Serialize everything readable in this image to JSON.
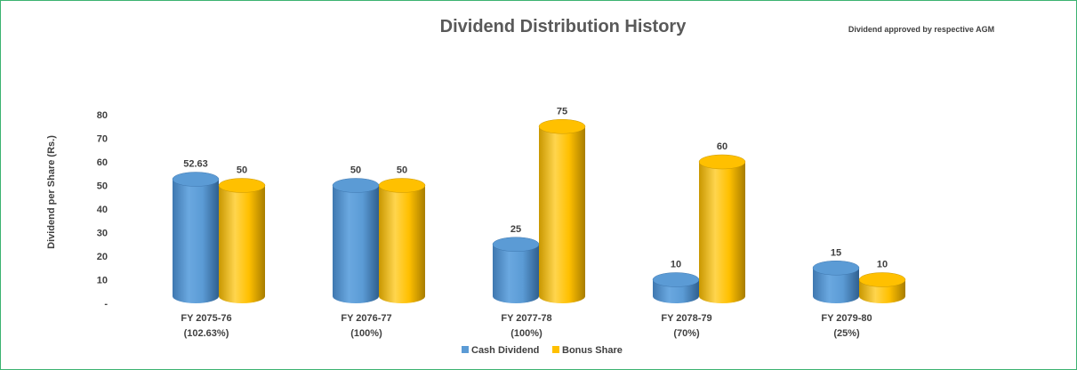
{
  "chart_data": {
    "type": "bar",
    "title": "Dividend Distribution History",
    "note": "Dividend approved by respective AGM",
    "ylabel": "Dividend per Share (Rs.)",
    "ylim": [
      0,
      80
    ],
    "yticks": [
      "-",
      "10",
      "20",
      "30",
      "40",
      "50",
      "60",
      "70",
      "80"
    ],
    "categories": [
      [
        "FY 2075-76",
        "(102.63%)"
      ],
      [
        "FY 2076-77",
        "(100%)"
      ],
      [
        "FY 2077-78",
        "(100%)"
      ],
      [
        "FY 2078-79",
        "(70%)"
      ],
      [
        "FY 2079-80",
        "(25%)"
      ]
    ],
    "series": [
      {
        "name": "Cash Dividend",
        "color": "#5b9bd5",
        "values": [
          52.63,
          50,
          25,
          10,
          15
        ],
        "labels": [
          "52.63",
          "50",
          "25",
          "10",
          "15"
        ]
      },
      {
        "name": "Bonus Share",
        "color": "#ffc000",
        "values": [
          50,
          50,
          75,
          60,
          10
        ],
        "labels": [
          "50",
          "50",
          "75",
          "60",
          "10"
        ]
      }
    ],
    "legend_position": "bottom",
    "grid": false
  }
}
